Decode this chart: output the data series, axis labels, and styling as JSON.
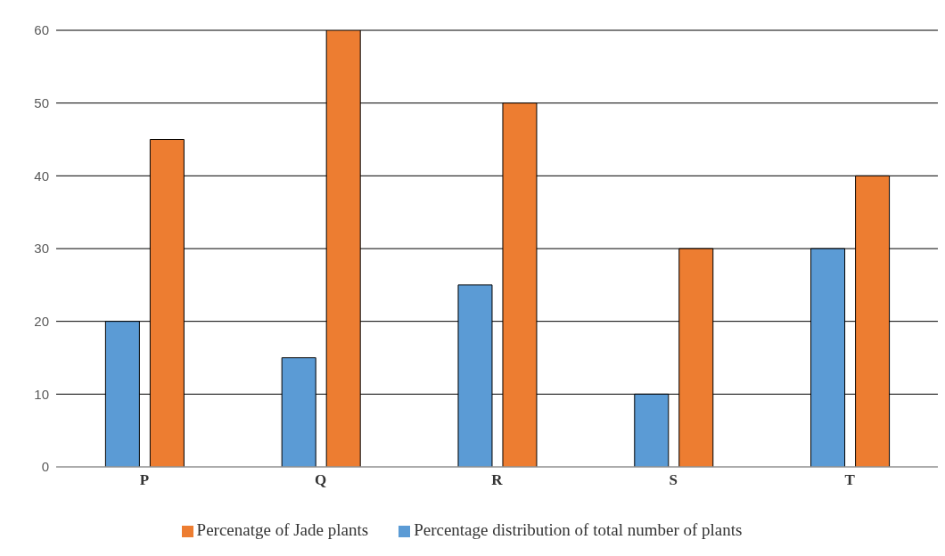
{
  "chart_data": {
    "type": "bar",
    "categories": [
      "P",
      "Q",
      "R",
      "S",
      "T"
    ],
    "series": [
      {
        "name": "Percentage distribution of total number of plants",
        "color": "#5b9bd5",
        "values": [
          20,
          15,
          25,
          10,
          30
        ]
      },
      {
        "name": "Percenatge of Jade plants",
        "color": "#ed7d31",
        "values": [
          45,
          60,
          50,
          30,
          40
        ]
      }
    ],
    "ylim": [
      0,
      60
    ],
    "yticks": [
      0,
      10,
      20,
      30,
      40,
      50,
      60
    ],
    "grid": "y",
    "legend": "bottom"
  }
}
